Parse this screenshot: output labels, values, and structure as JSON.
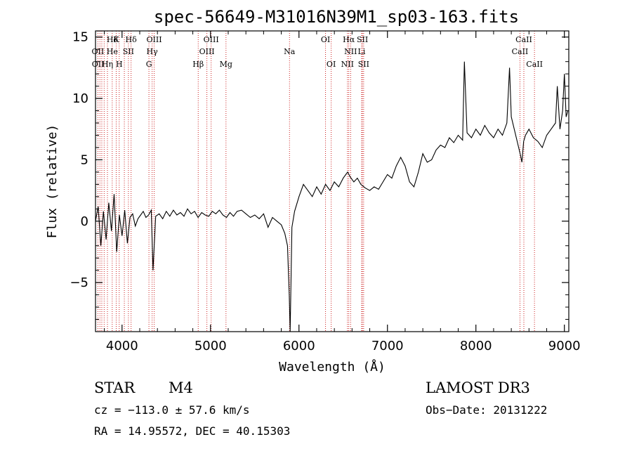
{
  "chart_data": {
    "type": "line",
    "title": "spec-56649-M31016N39M1_sp03-163.fits",
    "xlabel": "Wavelength (Å)",
    "ylabel": "Flux (relative)",
    "xlim": [
      3700,
      9050
    ],
    "ylim": [
      -9,
      15.5
    ],
    "xticks": [
      4000,
      5000,
      6000,
      7000,
      8000,
      9000
    ],
    "yticks": [
      -5,
      0,
      5,
      10,
      15
    ],
    "grid": false,
    "series_color": "#000000",
    "marker_color": "#cc2222",
    "spectrum": {
      "x": [
        3700,
        3730,
        3760,
        3790,
        3820,
        3850,
        3880,
        3910,
        3940,
        3970,
        4000,
        4030,
        4060,
        4090,
        4120,
        4150,
        4180,
        4210,
        4240,
        4270,
        4300,
        4330,
        4350,
        4380,
        4420,
        4460,
        4500,
        4540,
        4580,
        4620,
        4660,
        4700,
        4740,
        4780,
        4820,
        4860,
        4900,
        4940,
        4980,
        5020,
        5060,
        5100,
        5140,
        5180,
        5220,
        5260,
        5300,
        5350,
        5400,
        5450,
        5500,
        5550,
        5600,
        5650,
        5700,
        5750,
        5800,
        5840,
        5870,
        5890,
        5900,
        5920,
        5950,
        6000,
        6050,
        6100,
        6150,
        6200,
        6250,
        6300,
        6350,
        6400,
        6450,
        6500,
        6550,
        6580,
        6620,
        6660,
        6700,
        6750,
        6800,
        6850,
        6900,
        6950,
        7000,
        7050,
        7100,
        7150,
        7200,
        7250,
        7300,
        7350,
        7400,
        7450,
        7500,
        7550,
        7600,
        7650,
        7700,
        7750,
        7800,
        7850,
        7870,
        7900,
        7950,
        8000,
        8050,
        8100,
        8150,
        8200,
        8250,
        8300,
        8350,
        8380,
        8400,
        8450,
        8500,
        8520,
        8540,
        8560,
        8600,
        8650,
        8700,
        8750,
        8800,
        8850,
        8900,
        8920,
        8950,
        8980,
        9000,
        9020,
        9040
      ],
      "y": [
        0.0,
        1.2,
        -2.0,
        0.8,
        -1.5,
        1.5,
        -0.8,
        2.2,
        -2.5,
        0.5,
        -1.2,
        0.9,
        -1.8,
        0.3,
        0.6,
        -0.4,
        0.2,
        0.5,
        0.8,
        0.3,
        0.5,
        0.9,
        -4.0,
        0.4,
        0.6,
        0.2,
        0.8,
        0.4,
        0.9,
        0.5,
        0.7,
        0.4,
        1.0,
        0.6,
        0.8,
        0.3,
        0.7,
        0.5,
        0.4,
        0.8,
        0.6,
        0.9,
        0.5,
        0.3,
        0.7,
        0.4,
        0.8,
        0.9,
        0.6,
        0.3,
        0.5,
        0.2,
        0.6,
        -0.5,
        0.3,
        0.0,
        -0.3,
        -1.0,
        -2.0,
        -6.0,
        -9.0,
        -0.5,
        0.8,
        2.0,
        3.0,
        2.5,
        2.0,
        2.8,
        2.2,
        3.0,
        2.5,
        3.2,
        2.8,
        3.5,
        4.0,
        3.6,
        3.2,
        3.5,
        3.0,
        2.7,
        2.5,
        2.8,
        2.6,
        3.2,
        3.8,
        3.5,
        4.5,
        5.2,
        4.5,
        3.2,
        2.8,
        4.0,
        5.5,
        4.8,
        5.0,
        5.8,
        6.2,
        6.0,
        6.8,
        6.4,
        7.0,
        6.6,
        13.0,
        7.2,
        6.8,
        7.5,
        7.0,
        7.8,
        7.2,
        6.8,
        7.5,
        7.0,
        8.0,
        12.5,
        8.5,
        7.0,
        5.5,
        4.8,
        6.5,
        7.0,
        7.5,
        6.8,
        6.5,
        6.0,
        7.0,
        7.5,
        8.0,
        11.0,
        7.5,
        9.0,
        12.0,
        8.5,
        9.0
      ]
    },
    "lines": [
      {
        "name": "Hδ",
        "x": 3890,
        "row": 0
      },
      {
        "name": "K",
        "x": 3934,
        "row": 0
      },
      {
        "name": "Hδ",
        "x": 4102,
        "row": 0
      },
      {
        "name": "OIII",
        "x": 4363,
        "row": 0
      },
      {
        "name": "OIII",
        "x": 5007,
        "row": 0
      },
      {
        "name": "OI",
        "x": 6300,
        "row": 0
      },
      {
        "name": "Hα",
        "x": 6563,
        "row": 0
      },
      {
        "name": "SII",
        "x": 6717,
        "row": 0
      },
      {
        "name": "CaII",
        "x": 8542,
        "row": 0
      },
      {
        "name": "OII",
        "x": 3727,
        "row": 1
      },
      {
        "name": "He",
        "x": 3889,
        "row": 1
      },
      {
        "name": "SII",
        "x": 4072,
        "row": 1
      },
      {
        "name": "Hγ",
        "x": 4340,
        "row": 1
      },
      {
        "name": "OIII",
        "x": 4959,
        "row": 1
      },
      {
        "name": "Na",
        "x": 5893,
        "row": 1
      },
      {
        "name": "NII",
        "x": 6584,
        "row": 1
      },
      {
        "name": "Li",
        "x": 6708,
        "row": 1
      },
      {
        "name": "CaII",
        "x": 8498,
        "row": 1
      },
      {
        "name": "OII",
        "x": 3729,
        "row": 2
      },
      {
        "name": "Hη",
        "x": 3835,
        "row": 2
      },
      {
        "name": "H",
        "x": 3968,
        "row": 2
      },
      {
        "name": "G",
        "x": 4304,
        "row": 2
      },
      {
        "name": "Hβ",
        "x": 4861,
        "row": 2
      },
      {
        "name": "Mg",
        "x": 5175,
        "row": 2
      },
      {
        "name": "OI",
        "x": 6364,
        "row": 2
      },
      {
        "name": "NII",
        "x": 6548,
        "row": 2
      },
      {
        "name": "SII",
        "x": 6731,
        "row": 2
      },
      {
        "name": "CaII",
        "x": 8662,
        "row": 2
      }
    ],
    "marker_x": [
      3727,
      3750,
      3771,
      3798,
      3835,
      3889,
      3934,
      3968,
      4026,
      4072,
      4102,
      4304,
      4340,
      4363,
      4861,
      4959,
      5007,
      5175,
      5893,
      6300,
      6364,
      6548,
      6563,
      6584,
      6708,
      6717,
      6731,
      8498,
      8542,
      8662
    ]
  },
  "info": {
    "class": "STAR",
    "subclass": "M4",
    "survey": "LAMOST DR3",
    "cz": "cz = −113.0 ± 57.6 km/s",
    "obsdate": "Obs−Date: 20131222",
    "coords": "RA =  14.95572, DEC =  40.15303"
  }
}
